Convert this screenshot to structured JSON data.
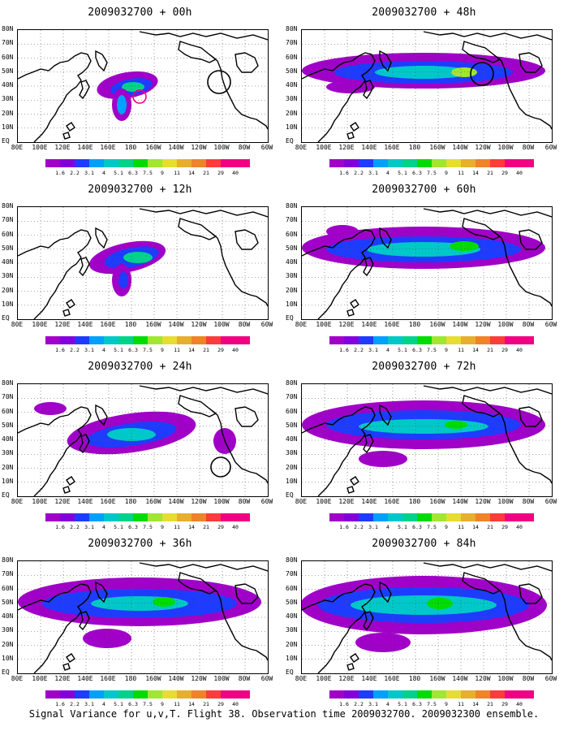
{
  "panels": [
    {
      "title": "2009032700 + 00h"
    },
    {
      "title": "2009032700 + 48h"
    },
    {
      "title": "2009032700 + 12h"
    },
    {
      "title": "2009032700 + 60h"
    },
    {
      "title": "2009032700 + 24h"
    },
    {
      "title": "2009032700 + 72h"
    },
    {
      "title": "2009032700 + 36h"
    },
    {
      "title": "2009032700 + 84h"
    }
  ],
  "lat_labels": [
    "80N",
    "70N",
    "60N",
    "50N",
    "40N",
    "30N",
    "20N",
    "10N",
    "EQ"
  ],
  "lon_labels": [
    "80E",
    "100E",
    "120E",
    "140E",
    "160E",
    "180",
    "160W",
    "140W",
    "120W",
    "100W",
    "80W",
    "60W"
  ],
  "colorbar": {
    "levels": [
      "1.6",
      "2.2",
      "3.1",
      "4",
      "5.1",
      "6.3",
      "7.5",
      "9",
      "11",
      "14",
      "21",
      "29",
      "40"
    ],
    "colors": [
      "#a000c8",
      "#8200dc",
      "#1e3cff",
      "#00a0ff",
      "#00c8c8",
      "#00d28c",
      "#00dc00",
      "#a0e632",
      "#e6dc32",
      "#e6af2d",
      "#f08228",
      "#fa3c3c",
      "#f00082"
    ]
  },
  "footer": "Signal Variance for u,v,T. Flight 38. Observation time 2009032700. 2009032300 ensemble."
}
